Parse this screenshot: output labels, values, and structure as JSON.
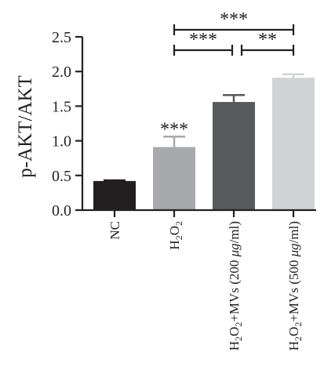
{
  "chart_data": {
    "type": "bar",
    "ylabel": "p-AKT/AKT",
    "ylim": [
      0,
      2.5
    ],
    "yticks": [
      "0.0",
      "0.5",
      "1.0",
      "1.5",
      "2.0",
      "2.5"
    ],
    "categories": [
      {
        "parts": [
          {
            "t": "NC"
          }
        ]
      },
      {
        "parts": [
          {
            "t": "H"
          },
          {
            "t": "2",
            "sub": true
          },
          {
            "t": "O"
          },
          {
            "t": "2",
            "sub": true
          }
        ]
      },
      {
        "parts": [
          {
            "t": "H"
          },
          {
            "t": "2",
            "sub": true
          },
          {
            "t": "O"
          },
          {
            "t": "2",
            "sub": true
          },
          {
            "t": "+MVs (200 "
          },
          {
            "t": "μg",
            "italic": true
          },
          {
            "t": "/ml)"
          }
        ]
      },
      {
        "parts": [
          {
            "t": "H"
          },
          {
            "t": "2",
            "sub": true
          },
          {
            "t": "O"
          },
          {
            "t": "2",
            "sub": true
          },
          {
            "t": "+MVs (500 "
          },
          {
            "t": "μg",
            "italic": true
          },
          {
            "t": "/ml)"
          }
        ]
      }
    ],
    "values": [
      0.42,
      0.91,
      1.56,
      1.91
    ],
    "errors": [
      0.01,
      0.15,
      0.1,
      0.05
    ],
    "colors": [
      "#231f20",
      "#a7a9ac",
      "#58595b",
      "#d1d3d4"
    ],
    "bar_annotations": [
      "",
      "***",
      "",
      ""
    ],
    "comparisons": [
      {
        "from": 1,
        "to": 2,
        "label": "***"
      },
      {
        "from": 2,
        "to": 3,
        "label": "**"
      },
      {
        "from": 1,
        "to": 3,
        "label": "***"
      }
    ]
  }
}
